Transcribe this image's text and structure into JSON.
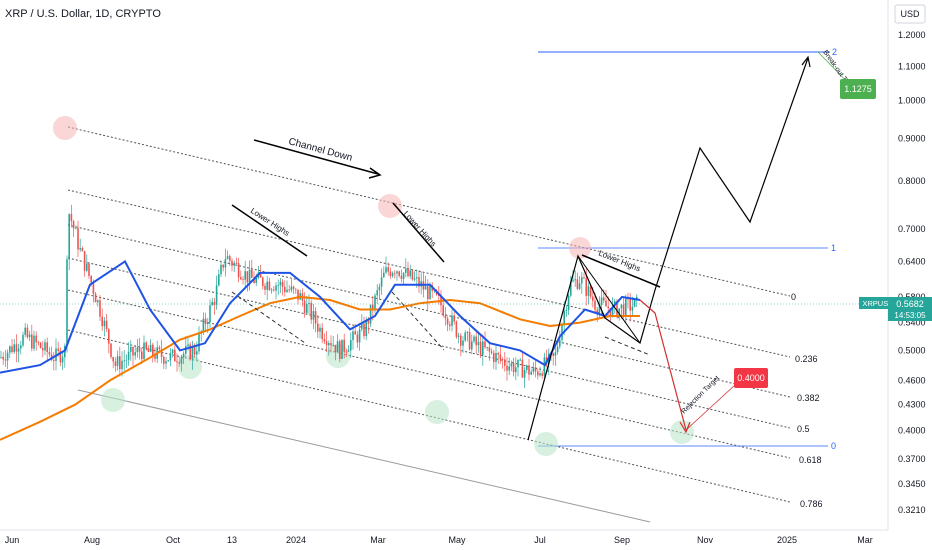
{
  "header": {
    "title": "XRP / U.S. Dollar, 1D, CRYPTO",
    "currency": "USD"
  },
  "price_axis": {
    "ticks": [
      "1.2000",
      "1.1000",
      "1.0000",
      "0.9000",
      "0.8000",
      "0.7000",
      "0.6400",
      "0.5800",
      "0.5400",
      "0.5000",
      "0.4600",
      "0.4300",
      "0.4000",
      "0.3700",
      "0.3450",
      "0.3210"
    ]
  },
  "time_axis": {
    "labels": [
      "Jun",
      "Aug",
      "Oct",
      "13",
      "2024",
      "Mar",
      "May",
      "Jul",
      "Sep",
      "Nov",
      "2025",
      "Mar"
    ]
  },
  "current_price": {
    "symbol": "XRPUSD",
    "value": "0.5682",
    "countdown": "14:53:05",
    "color": "#26a69a"
  },
  "targets": {
    "breakout_label": "Break-out Target",
    "breakout_value": "1.1275",
    "breakout_color": "#4caf50",
    "rejection_label": "Rejection Target",
    "rejection_value": "0.4000",
    "rejection_color": "#f23645"
  },
  "annotations": {
    "channel_down": "Channel Down",
    "lower_highs_1": "Lower Highs",
    "lower_highs_2": "Lower Highs",
    "lower_highs_3": "Lower Highs"
  },
  "fib_levels": [
    "0",
    "0.236",
    "0.382",
    "0.5",
    "0.618",
    "0.786"
  ],
  "fib_box_labels": [
    "1",
    "0",
    "2"
  ],
  "chart_data": {
    "type": "line",
    "title": "XRP / U.S. Dollar, 1D, CRYPTO",
    "yscale": "log",
    "ylim": [
      0.31,
      1.25
    ],
    "x_labels": [
      "Jun",
      "Aug",
      "Oct",
      "13",
      "2024",
      "Mar",
      "May",
      "Jul",
      "Sep",
      "Nov",
      "2025",
      "Mar"
    ],
    "series": [
      {
        "name": "XRPUSD",
        "color": "#26a69a",
        "x": [
          "Jun",
          "Aug",
          "Oct",
          "13",
          "2024",
          "Mar",
          "May",
          "Jul",
          "Sep"
        ],
        "values": [
          0.49,
          0.63,
          0.51,
          0.62,
          0.62,
          0.6,
          0.51,
          0.49,
          0.5682
        ]
      }
    ],
    "price_colors": {
      "up": "#26a69a",
      "down": "#ef5350",
      "ma_fast": "#1e53e5",
      "ma_slow": "#f57c00"
    }
  }
}
